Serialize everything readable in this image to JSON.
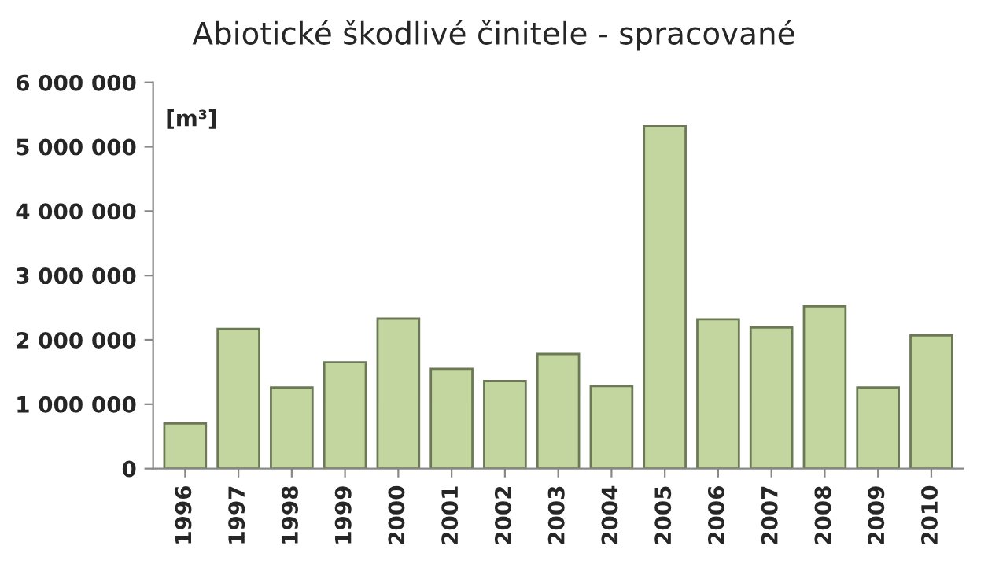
{
  "chart_data": {
    "type": "bar",
    "title": "Abiotické škodlivé činitele - spracované",
    "categories": [
      "1996",
      "1997",
      "1998",
      "1999",
      "2000",
      "2001",
      "2002",
      "2003",
      "2004",
      "2005",
      "2006",
      "2007",
      "2008",
      "2009",
      "2010"
    ],
    "values": [
      700000,
      2170000,
      1260000,
      1650000,
      2330000,
      1550000,
      1360000,
      1780000,
      1280000,
      5320000,
      2320000,
      2190000,
      2520000,
      1260000,
      2070000
    ],
    "color": "#c4d6a0",
    "ylim": [
      0,
      6000000
    ],
    "yticks": [
      {
        "value": 0,
        "label": "0"
      },
      {
        "value": 1000000,
        "label": "1 000 000"
      },
      {
        "value": 2000000,
        "label": "2 000 000"
      },
      {
        "value": 3000000,
        "label": "3 000 000"
      },
      {
        "value": 4000000,
        "label": "4 000 000"
      },
      {
        "value": 5000000,
        "label": "5 000 000"
      },
      {
        "value": 6000000,
        "label": "6 000 000"
      }
    ],
    "annotations": [
      "[m³]"
    ],
    "grid": false
  }
}
